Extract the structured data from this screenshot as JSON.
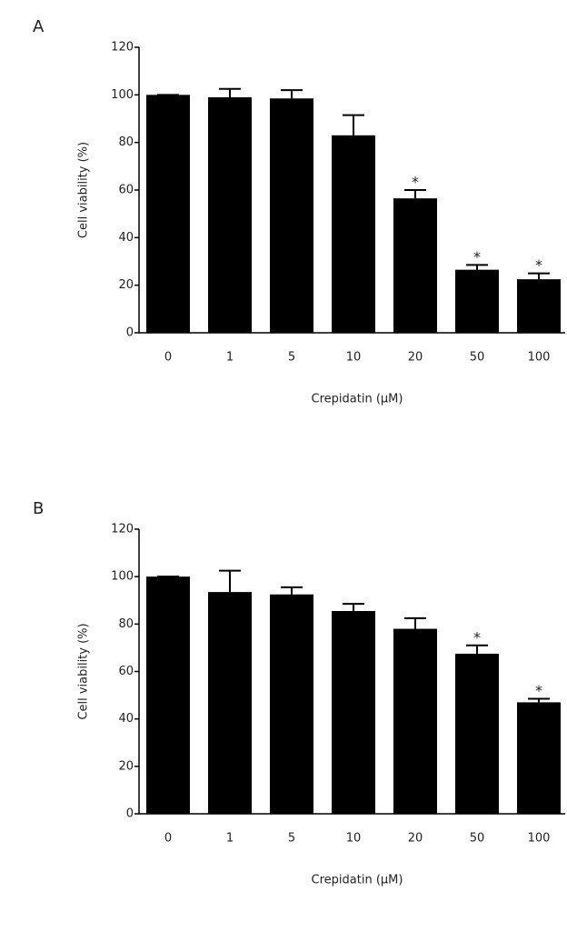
{
  "chart_data": [
    {
      "type": "bar",
      "label": "A",
      "x_label": "Crepidatin (µM)",
      "y_label": "Cell viability (%)",
      "categories": [
        "0",
        "1",
        "5",
        "10",
        "20",
        "50",
        "100"
      ],
      "values": [
        100,
        99,
        98.5,
        83,
        56.5,
        26.5,
        22.5
      ],
      "errors": [
        0,
        3.5,
        3.5,
        8.5,
        3.5,
        2,
        2.5
      ],
      "annotations": [
        {
          "category": "20",
          "text": "*"
        },
        {
          "category": "50",
          "text": "*"
        },
        {
          "category": "100",
          "text": "*"
        }
      ],
      "color": "#000000",
      "ylim": [
        0,
        120
      ],
      "yticks": [
        0,
        20,
        40,
        60,
        80,
        100,
        120
      ]
    },
    {
      "type": "bar",
      "label": "B",
      "x_label": "Crepidatin (µM)",
      "y_label": "Cell viability (%)",
      "categories": [
        "0",
        "1",
        "5",
        "10",
        "20",
        "50",
        "100"
      ],
      "values": [
        100,
        93.5,
        92.5,
        85.5,
        78,
        67.5,
        47
      ],
      "errors": [
        0,
        9,
        3,
        3,
        4.5,
        3.5,
        1.5
      ],
      "annotations": [
        {
          "category": "50",
          "text": "*"
        },
        {
          "category": "100",
          "text": "*"
        }
      ],
      "color": "#000000",
      "ylim": [
        0,
        120
      ],
      "yticks": [
        0,
        20,
        40,
        60,
        80,
        100,
        120
      ]
    }
  ]
}
